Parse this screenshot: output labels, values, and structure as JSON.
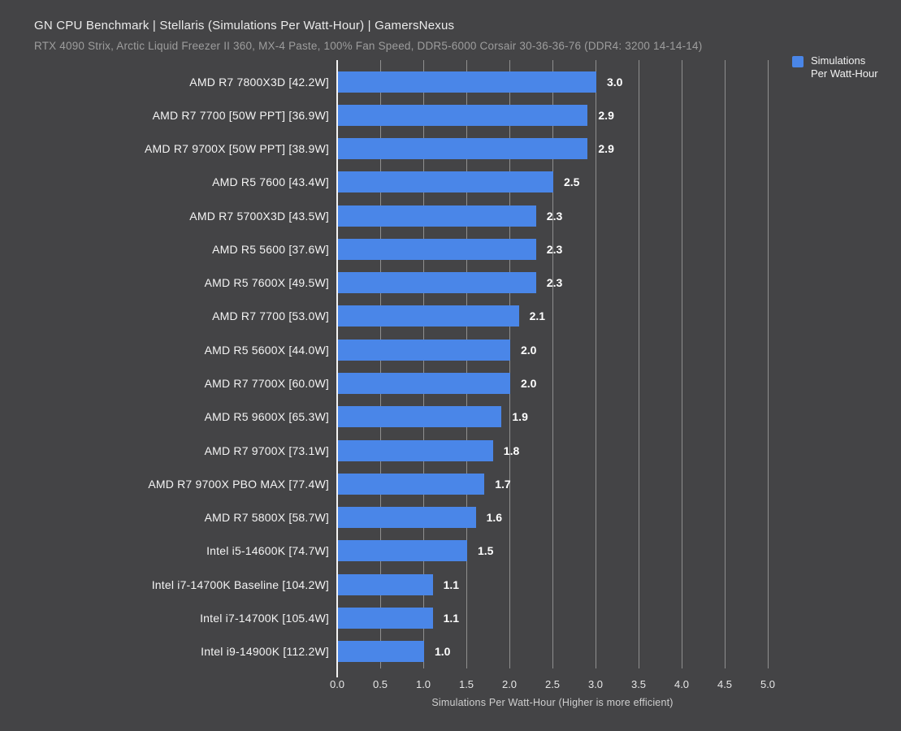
{
  "header": {
    "title": "GN CPU Benchmark | Stellaris (Simulations Per Watt-Hour) | GamersNexus",
    "subtitle": "RTX 4090 Strix, Arctic Liquid Freezer II 360, MX-4 Paste, 100% Fan Speed, DDR5-6000 Corsair 30-36-36-76 (DDR4: 3200 14-14-14)"
  },
  "legend": {
    "lines": [
      "Simulations",
      "Per Watt-Hour"
    ],
    "swatch_color": "#4a86e8",
    "position": "top-right"
  },
  "colors": {
    "background": "#444446",
    "bar": "#4a86e8",
    "gridline": "#8f8f8f",
    "axis_line": "#f2f2f2",
    "title_text": "#ebebeb",
    "subtitle_text": "#9d9d9d",
    "category_text": "#f4f4f4",
    "value_text": "#ffffff"
  },
  "chart_data": {
    "type": "bar",
    "orientation": "horizontal",
    "title": "GN CPU Benchmark | Stellaris (Simulations Per Watt-Hour) | GamersNexus",
    "subtitle": "RTX 4090 Strix, Arctic Liquid Freezer II 360, MX-4 Paste, 100% Fan Speed, DDR5-6000 Corsair 30-36-36-76 (DDR4: 3200 14-14-14)",
    "xlabel": "Simulations Per Watt-Hour (Higher is more efficient)",
    "ylabel": "",
    "xlim": [
      0.0,
      5.0
    ],
    "grid": true,
    "legend_entries": [
      "Simulations Per Watt-Hour"
    ],
    "legend_position": "top-right",
    "xticks": [
      0.0,
      0.5,
      1.0,
      1.5,
      2.0,
      2.5,
      3.0,
      3.5,
      4.0,
      4.5,
      5.0
    ],
    "xtick_labels": [
      "0.0",
      "0.5",
      "1.0",
      "1.5",
      "2.0",
      "2.5",
      "3.0",
      "3.5",
      "4.0",
      "4.5",
      "5.0"
    ],
    "categories": [
      "AMD R7 7800X3D [42.2W]",
      "AMD R7 7700 [50W PPT] [36.9W]",
      "AMD R7 9700X [50W PPT] [38.9W]",
      "AMD R5 7600 [43.4W]",
      "AMD R7 5700X3D [43.5W]",
      "AMD R5 5600 [37.6W]",
      "AMD R5 7600X [49.5W]",
      "AMD R7 7700 [53.0W]",
      "AMD R5 5600X [44.0W]",
      "AMD R7 7700X [60.0W]",
      "AMD R5 9600X [65.3W]",
      "AMD R7 9700X [73.1W]",
      "AMD R7 9700X PBO MAX [77.4W]",
      "AMD R7 5800X [58.7W]",
      "Intel i5-14600K [74.7W]",
      "Intel i7-14700K Baseline [104.2W]",
      "Intel i7-14700K [105.4W]",
      "Intel i9-14900K [112.2W]"
    ],
    "values": [
      3.0,
      2.9,
      2.9,
      2.5,
      2.3,
      2.3,
      2.3,
      2.1,
      2.0,
      2.0,
      1.9,
      1.8,
      1.7,
      1.6,
      1.5,
      1.1,
      1.1,
      1.0
    ],
    "value_labels": [
      "3.0",
      "2.9",
      "2.9",
      "2.5",
      "2.3",
      "2.3",
      "2.3",
      "2.1",
      "2.0",
      "2.0",
      "1.9",
      "1.8",
      "1.7",
      "1.6",
      "1.5",
      "1.1",
      "1.1",
      "1.0"
    ]
  }
}
